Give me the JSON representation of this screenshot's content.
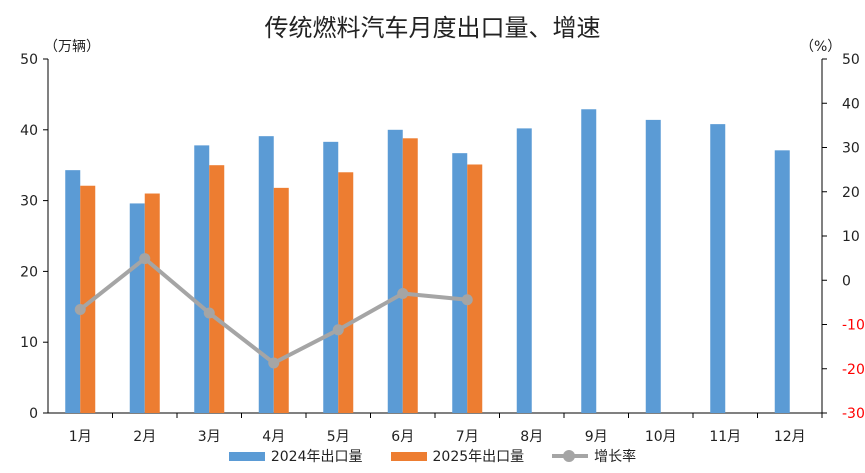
{
  "title": "传统燃料汽车月度出口量、增速",
  "left_unit": "（万辆）",
  "right_unit": "（%）",
  "colors": {
    "series_2024": "#5b9bd5",
    "series_2025": "#ed7d31",
    "growth": "#a5a5a5",
    "negative_tick": "#ff0000",
    "axis": "#000000"
  },
  "chart_data": {
    "type": "bar",
    "categories": [
      "1月",
      "2月",
      "3月",
      "4月",
      "5月",
      "6月",
      "7月",
      "8月",
      "9月",
      "10月",
      "11月",
      "12月"
    ],
    "series": [
      {
        "name": "2024年出口量",
        "type": "bar",
        "axis": "left",
        "values": [
          34.3,
          29.6,
          37.8,
          39.1,
          38.3,
          40.0,
          36.7,
          40.2,
          42.9,
          41.4,
          40.8,
          37.1
        ]
      },
      {
        "name": "2025年出口量",
        "type": "bar",
        "axis": "left",
        "values": [
          32.1,
          31.0,
          35.0,
          31.8,
          34.0,
          38.8,
          35.1,
          null,
          null,
          null,
          null,
          null
        ]
      },
      {
        "name": "增长率",
        "type": "line",
        "axis": "right",
        "values": [
          -6.6,
          4.9,
          -7.4,
          -18.7,
          -11.2,
          -3.0,
          -4.4,
          null,
          null,
          null,
          null,
          null
        ]
      }
    ],
    "y_left": {
      "range": [
        0,
        50
      ],
      "ticks": [
        "0",
        "10",
        "20",
        "30",
        "40",
        "50"
      ]
    },
    "y_right": {
      "range": [
        -30,
        50
      ],
      "ticks": [
        "-30",
        "-20",
        "-10",
        "0",
        "10",
        "20",
        "30",
        "40",
        "50"
      ]
    },
    "grid": false,
    "legend_position": "bottom"
  }
}
